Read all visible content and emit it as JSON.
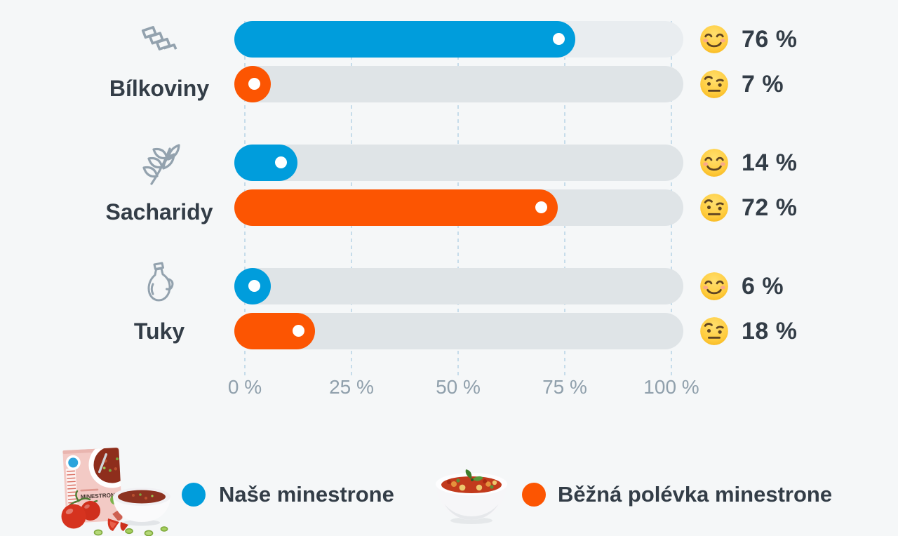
{
  "chart_data": {
    "type": "bar",
    "orientation": "horizontal",
    "categories": [
      "Bílkoviny",
      "Sacharidy",
      "Tuky"
    ],
    "series": [
      {
        "name": "Naše minestrone",
        "color": "#009ddc",
        "values": [
          76,
          14,
          6
        ]
      },
      {
        "name": "Běžná polévka minestrone",
        "color": "#fc5502",
        "values": [
          7,
          72,
          18
        ]
      }
    ],
    "x_ticks": [
      "0 %",
      "25 %",
      "50 %",
      "75 %",
      "100 %"
    ],
    "xlim": [
      0,
      100
    ],
    "grid": "vertical-dashed",
    "legend_position": "bottom"
  },
  "groups": [
    {
      "label": "Bílkoviny",
      "icon": "pasta-icon",
      "bars": [
        {
          "series": "Naše minestrone",
          "value": 76,
          "display": "76 %",
          "emoji": "smiling-face"
        },
        {
          "series": "Běžná polévka minestrone",
          "value": 7,
          "display": "7 %",
          "emoji": "face-with-raised-eyebrow"
        }
      ]
    },
    {
      "label": "Sacharidy",
      "icon": "wheat-icon",
      "bars": [
        {
          "series": "Naše minestrone",
          "value": 14,
          "display": "14 %",
          "emoji": "smiling-face"
        },
        {
          "series": "Běžná polévka minestrone",
          "value": 72,
          "display": "72 %",
          "emoji": "face-with-raised-eyebrow"
        }
      ]
    },
    {
      "label": "Tuky",
      "icon": "oil-bottle-icon",
      "bars": [
        {
          "series": "Naše minestrone",
          "value": 6,
          "display": "6 %",
          "emoji": "smiling-face"
        },
        {
          "series": "Běžná polévka minestrone",
          "value": 18,
          "display": "18 %",
          "emoji": "face-with-raised-eyebrow"
        }
      ]
    }
  ],
  "legend": [
    {
      "label": "Naše minestrone",
      "color": "#009ddc",
      "image": "minestrone-product-box-with-bowl-and-tomatoes"
    },
    {
      "label": "Běžná polévka minestrone",
      "color": "#fc5502",
      "image": "minestrone-soup-bowl"
    }
  ],
  "product_box_text": "MINESTRONE",
  "colors": {
    "background": "#f5f7f8",
    "track": "#dfe4e7",
    "track_first_row": "#e9edf0",
    "series_ours": "#009ddc",
    "series_regular": "#fc5502",
    "gridline": "#c6dcea",
    "axis_text": "#90a0ac",
    "label_text": "#333d47"
  }
}
